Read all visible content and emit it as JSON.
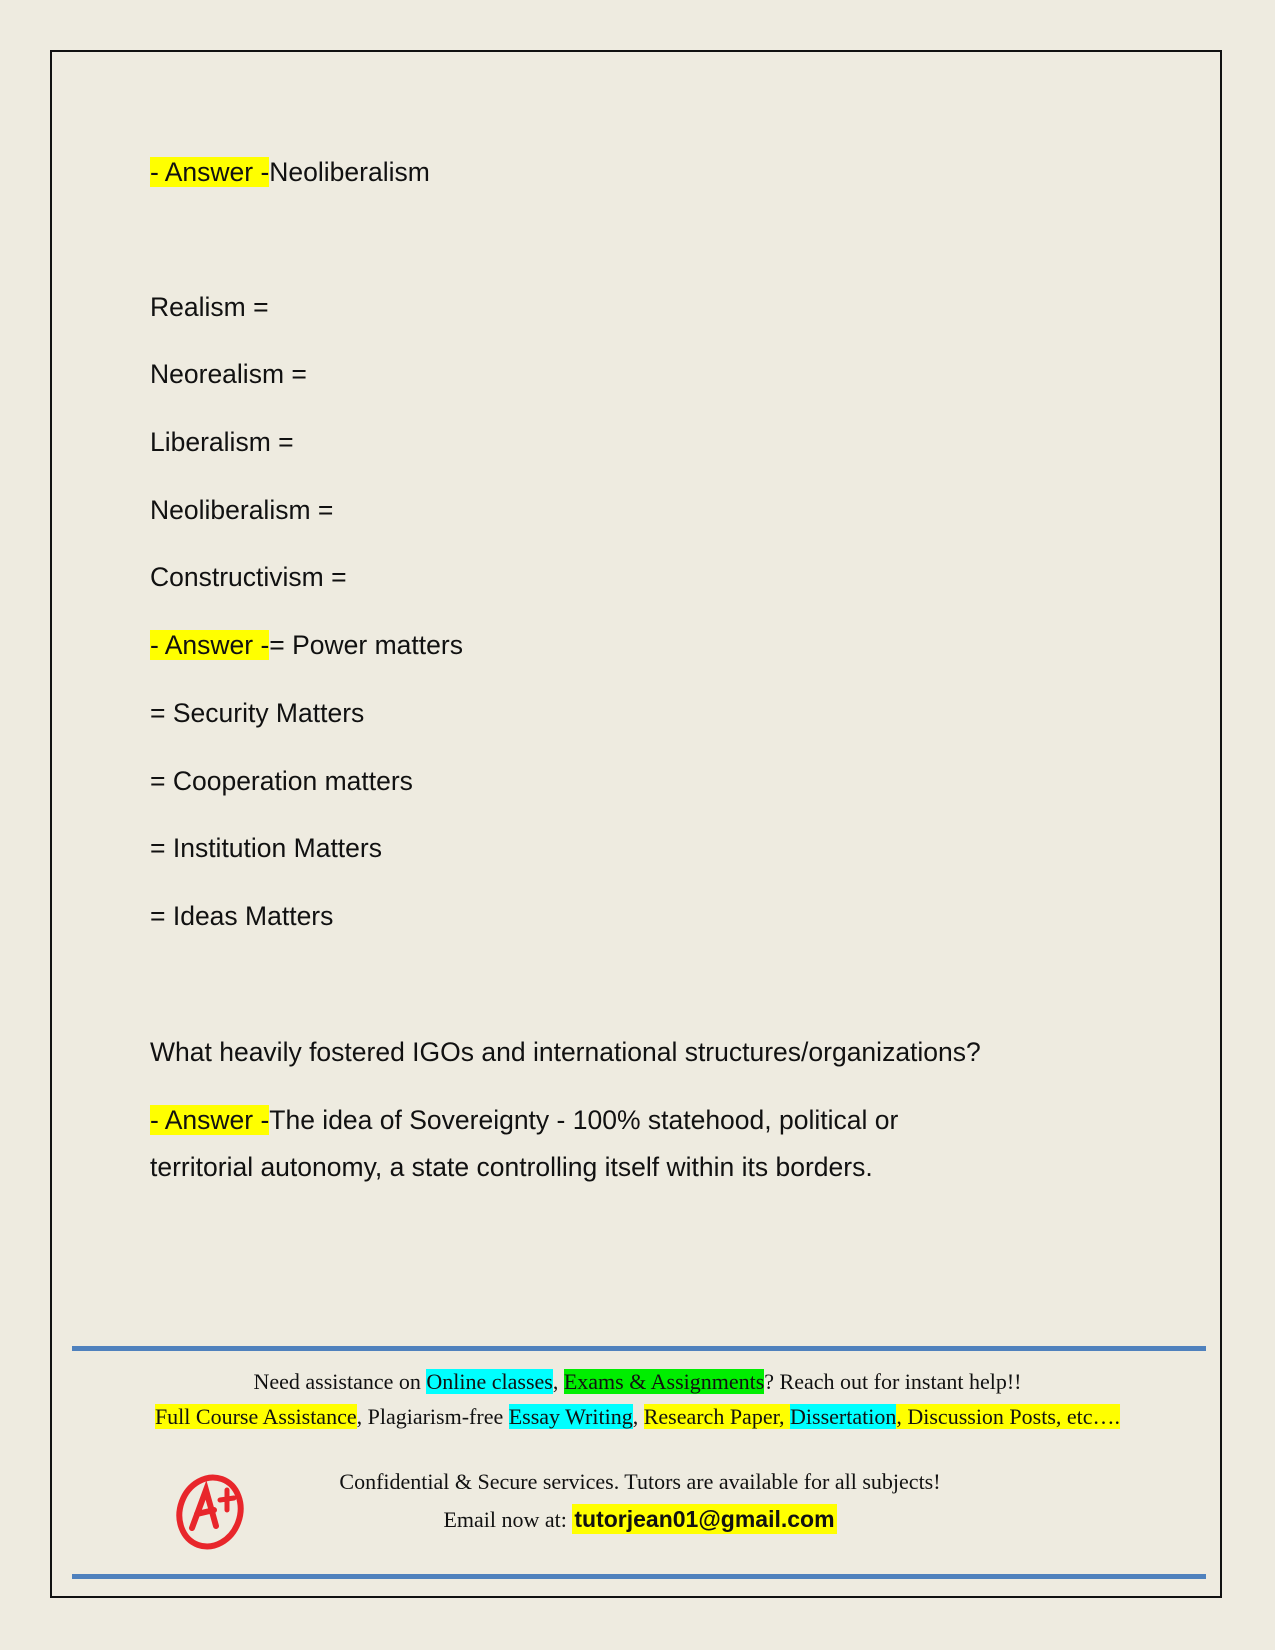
{
  "content": {
    "answer_prefix": "- Answer -",
    "q1_answer": "Neoliberalism",
    "terms": [
      "Realism =",
      "Neorealism =",
      "Liberalism =",
      "Neoliberalism =",
      "Constructivism ="
    ],
    "q2_answer_first": "= Power matters",
    "q2_answer_rest": [
      "= Security Matters",
      "= Cooperation matters",
      "= Institution Matters",
      "= Ideas Matters"
    ],
    "q3_question": "What heavily fostered IGOs and international structures/organizations?",
    "q3_answer_line1": "The idea of Sovereignty - 100% statehood, political or",
    "q3_answer_line2": "territorial autonomy, a state controlling itself within its borders."
  },
  "footer": {
    "l1_a": "Need assistance on ",
    "l1_b": "Online classes",
    "l1_c": ", ",
    "l1_d": "Exams & Assignments",
    "l1_e": "? Reach out for instant help!!",
    "l2_a": "Full Course Assistance",
    "l2_b": ", Plagiarism-free ",
    "l2_c": "Essay Writing",
    "l2_d": ", ",
    "l2_e": "Research Paper, ",
    "l2_f": "Dissertation",
    "l2_g": ", Discussion Posts, etc….",
    "l3": "Confidential & Secure services. Tutors are available for all subjects!",
    "l4_label": "Email now at:  ",
    "email": "tutorjean01@gmail.com",
    "logo_text": "A+"
  },
  "colors": {
    "highlight_yellow": "#ffff00",
    "highlight_cyan": "#00ffff",
    "highlight_green": "#00ee00",
    "rule_blue": "#4f81bd",
    "logo_red": "#e8262b"
  }
}
